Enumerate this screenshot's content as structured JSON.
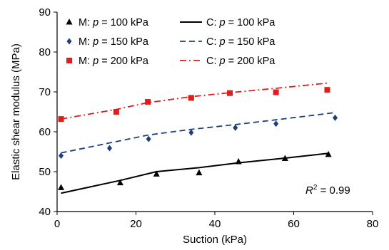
{
  "chart_data": {
    "type": "scatter",
    "xlabel": "Suction (kPa)",
    "ylabel": "Elastic shear modulus (MPa)",
    "xlim": [
      0,
      80
    ],
    "ylim": [
      40,
      90
    ],
    "xticks": [
      0,
      20,
      40,
      60,
      80
    ],
    "yticks": [
      40,
      50,
      60,
      70,
      80,
      90
    ],
    "grid": false,
    "legend_position": "top-right",
    "annotation": {
      "prefix": "R",
      "sup": "2",
      "suffix": " = 0.99"
    },
    "series": [
      {
        "name": "M: p = 100 kPa",
        "kind": "measured",
        "marker": "triangle",
        "color": "#000000",
        "x": [
          1.0,
          16.0,
          25.2,
          36.0,
          46.0,
          57.8,
          68.8
        ],
        "y": [
          46.0,
          47.2,
          49.4,
          49.7,
          52.5,
          53.3,
          54.3
        ]
      },
      {
        "name": "M: p = 150 kPa",
        "kind": "measured",
        "marker": "diamond",
        "color": "#1f3f7a",
        "x": [
          1.0,
          13.3,
          23.2,
          34.0,
          45.2,
          55.5,
          70.5
        ],
        "y": [
          54.0,
          55.9,
          58.2,
          59.8,
          61.0,
          62.0,
          63.5
        ]
      },
      {
        "name": "M: p = 200 kPa",
        "kind": "measured",
        "marker": "square",
        "color": "#e01c1c",
        "x": [
          1.0,
          15.0,
          23.0,
          34.0,
          43.8,
          55.5,
          68.5
        ],
        "y": [
          63.2,
          65.0,
          67.5,
          68.5,
          69.7,
          69.9,
          70.5
        ]
      },
      {
        "name": "C: p = 100 kPa",
        "kind": "computed",
        "line_style": "solid",
        "color": "#000000",
        "x": [
          1.0,
          16.0,
          25.2,
          36.0,
          46.0,
          57.8,
          68.8
        ],
        "y": [
          44.6,
          47.8,
          50.0,
          51.0,
          52.2,
          53.4,
          54.6
        ]
      },
      {
        "name": "C: p = 150 kPa",
        "kind": "computed",
        "line_style": "dashed",
        "color": "#1f3f7a",
        "x": [
          1.0,
          13.3,
          23.2,
          34.0,
          45.2,
          55.5,
          70.5
        ],
        "y": [
          54.7,
          57.2,
          59.2,
          60.6,
          61.8,
          63.0,
          64.8
        ]
      },
      {
        "name": "C: p = 200 kPa",
        "kind": "computed",
        "line_style": "dashdot",
        "color": "#e01c1c",
        "x": [
          1.0,
          15.0,
          23.0,
          34.0,
          43.8,
          55.5,
          68.5
        ],
        "y": [
          63.2,
          65.6,
          67.3,
          68.8,
          69.8,
          70.9,
          72.2
        ]
      }
    ]
  }
}
